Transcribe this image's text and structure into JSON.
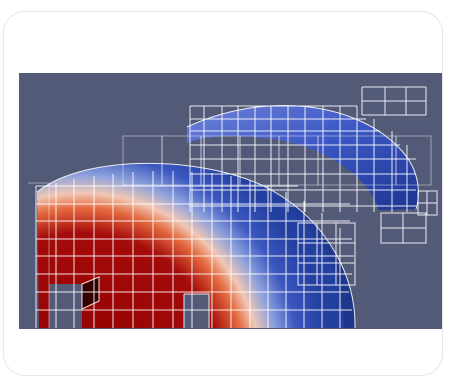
{
  "figure": {
    "kind": "3D simulation render",
    "image_description_icon": "mesh-render-icon"
  },
  "colors": {
    "page_background": "#ffffff",
    "card_border": "#e6e6e6",
    "viewport_background": "#525a78",
    "field_high": "#990000",
    "field_mid": "#f2d7c8",
    "field_low": "#2f4fb3",
    "wireframe": "#ffffff"
  }
}
